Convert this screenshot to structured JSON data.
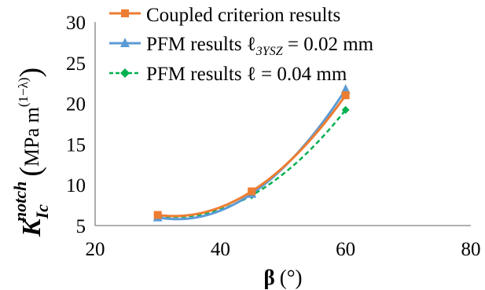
{
  "chart_data": {
    "type": "line",
    "xlabel": {
      "symbol": "β",
      "unit": "(°)"
    },
    "ylabel": {
      "symbol": "K",
      "sup": "notch",
      "sub": "Ic",
      "unit_main": "MPa m",
      "unit_exp": "(1−λ)"
    },
    "xlim": [
      20,
      80
    ],
    "ylim": [
      5,
      30
    ],
    "xticks": [
      "20",
      "40",
      "60",
      "80"
    ],
    "yticks": [
      "5",
      "10",
      "15",
      "20",
      "25",
      "30"
    ],
    "grid": false,
    "legend_position": "top-left",
    "series": [
      {
        "name": "Coupled criterion results",
        "color": "#ED7D31",
        "marker": "square",
        "line_style": "solid",
        "x": [
          30,
          45,
          60
        ],
        "y": [
          6.3,
          9.2,
          21.0
        ]
      },
      {
        "name_parts": [
          "PFM results ℓ",
          "3YSZ",
          " = 0.02 mm"
        ],
        "color": "#5B9BD5",
        "marker": "triangle",
        "line_style": "solid",
        "x": [
          30,
          45,
          60
        ],
        "y": [
          6.0,
          8.9,
          21.7
        ]
      },
      {
        "name": "PFM results ℓ = 0.04 mm",
        "color": "#00B050",
        "marker": "diamond",
        "line_style": "dashed",
        "x": [
          30,
          45,
          60
        ],
        "y": [
          6.2,
          8.7,
          19.2
        ]
      }
    ]
  }
}
